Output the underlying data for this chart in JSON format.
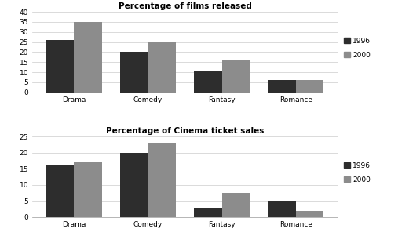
{
  "chart1": {
    "title": "Percentage of films released",
    "categories": [
      "Drama",
      "Comedy",
      "Fantasy",
      "Romance"
    ],
    "values_1996": [
      26,
      20,
      11,
      6
    ],
    "values_2000": [
      35,
      25,
      16,
      6
    ],
    "ylim": [
      0,
      40
    ],
    "yticks": [
      0,
      5,
      10,
      15,
      20,
      25,
      30,
      35,
      40
    ]
  },
  "chart2": {
    "title": "Percentage of Cinema ticket sales",
    "categories": [
      "Drama",
      "Comedy",
      "Fantasy",
      "Romance"
    ],
    "values_1996": [
      16,
      20,
      3,
      5
    ],
    "values_2000": [
      17,
      23,
      7.5,
      2
    ],
    "ylim": [
      0,
      25
    ],
    "yticks": [
      0,
      5,
      10,
      15,
      20,
      25
    ]
  },
  "color_1996": "#2d2d2d",
  "color_2000": "#8c8c8c",
  "background_color": "#ffffff",
  "chart_bg": "#ffffff",
  "bar_width": 0.38
}
